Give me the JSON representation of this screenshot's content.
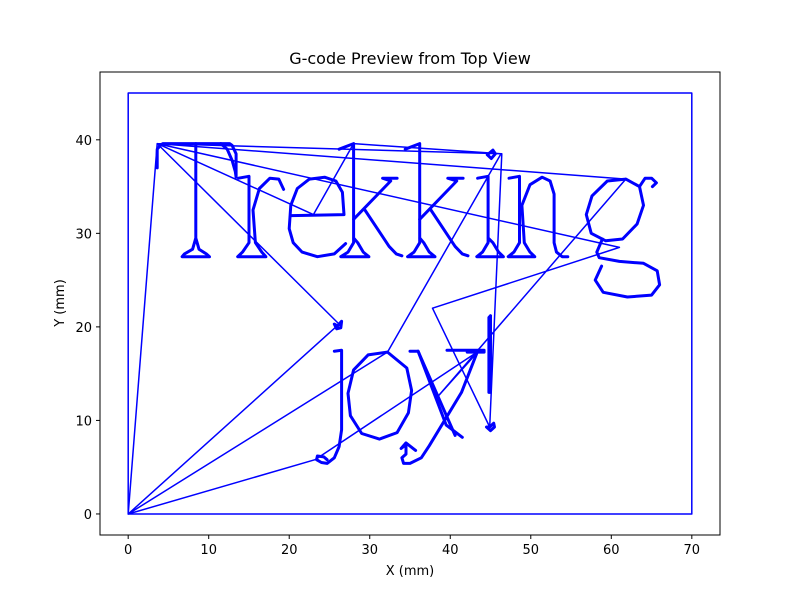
{
  "chart_data": {
    "type": "line",
    "title": "G-code Preview from Top View",
    "xlabel": "X (mm)",
    "ylabel": "Y (mm)",
    "xlim": [
      -3.5,
      73.5
    ],
    "ylim": [
      -2.25,
      47.25
    ],
    "xticks": [
      0,
      10,
      20,
      30,
      40,
      50,
      60,
      70
    ],
    "yticks": [
      0,
      10,
      20,
      30,
      40
    ],
    "grid": false,
    "line_color": "#0000ff",
    "series": [
      {
        "kind": "boundary",
        "x": [
          0,
          70,
          70,
          0,
          0
        ],
        "y": [
          0,
          0,
          45,
          45,
          0
        ]
      },
      {
        "kind": "travel",
        "x": [
          0,
          3.6,
          26.2,
          0,
          23.2,
          43.5,
          38.4,
          61.8,
          3.6,
          46.4,
          44.9,
          37.8,
          61.0,
          3.6,
          23.0,
          28.0,
          46.3,
          32.2,
          0
        ],
        "y": [
          0,
          39.6,
          20.3,
          0,
          5.8,
          17.4,
          12.5,
          35.8,
          39.6,
          38.5,
          9.3,
          22.0,
          28.5,
          39.6,
          32.0,
          39.6,
          38.5,
          17.3,
          0
        ]
      },
      {
        "kind": "glyph",
        "x": [
          3.6,
          3.6,
          4.0,
          4.3,
          12.6,
          12.9,
          13.4,
          13.4
        ],
        "y": [
          37.0,
          39.0,
          39.4,
          39.6,
          39.6,
          39.4,
          38.5,
          36.0
        ]
      },
      {
        "kind": "glyph",
        "x": [
          8.4,
          8.4,
          8.0,
          7.0,
          6.7,
          10.1,
          9.7,
          8.8,
          8.4
        ],
        "y": [
          39.6,
          29.5,
          28.3,
          27.8,
          27.5,
          27.5,
          27.8,
          28.3,
          29.5
        ]
      },
      {
        "kind": "glyph",
        "x": [
          11.5,
          12.3,
          12.9,
          13.3,
          13.4
        ],
        "y": [
          39.6,
          39.0,
          37.8,
          36.6,
          36.0
        ]
      },
      {
        "kind": "glyph",
        "x": [
          13.7,
          15.0,
          15.0,
          14.2,
          13.6,
          17.1,
          16.6,
          15.8,
          15.5,
          16.3,
          17.6,
          18.7,
          19.3
        ],
        "y": [
          35.9,
          36.1,
          29.0,
          28.0,
          27.5,
          27.5,
          28.0,
          29.0,
          32.5,
          34.8,
          35.9,
          35.8,
          34.7
        ]
      },
      {
        "kind": "glyph",
        "x": [
          20.3,
          26.8,
          26.6,
          25.8,
          24.4,
          22.5,
          21.0,
          20.2,
          20.0,
          20.5,
          21.6,
          23.5,
          25.6,
          27.0
        ],
        "y": [
          31.9,
          32.0,
          34.4,
          35.6,
          36.0,
          35.8,
          34.8,
          33.0,
          30.5,
          29.0,
          28.0,
          27.5,
          27.8,
          28.9
        ]
      },
      {
        "kind": "glyph",
        "x": [
          26.2,
          28.0,
          28.0,
          27.3,
          26.4,
          29.9,
          29.2,
          28.5,
          28.0
        ],
        "y": [
          39.0,
          39.6,
          29.0,
          28.0,
          27.5,
          27.5,
          28.0,
          29.0,
          29.5
        ]
      },
      {
        "kind": "glyph",
        "x": [
          28.0,
          32.6,
          31.6,
          33.4
        ],
        "y": [
          31.5,
          35.6,
          35.9,
          35.9
        ]
      },
      {
        "kind": "glyph",
        "x": [
          29.4,
          32.4,
          33.3,
          34.0
        ],
        "y": [
          32.5,
          28.6,
          27.8,
          27.6
        ]
      },
      {
        "kind": "glyph",
        "x": [
          34.4,
          36.2,
          36.2,
          35.5,
          34.7,
          38.1,
          37.4,
          36.7,
          36.2
        ],
        "y": [
          39.0,
          39.6,
          29.0,
          28.0,
          27.5,
          27.5,
          28.0,
          29.0,
          29.5
        ]
      },
      {
        "kind": "glyph",
        "x": [
          36.2,
          40.8,
          39.7,
          41.6
        ],
        "y": [
          31.5,
          35.6,
          35.9,
          35.9
        ]
      },
      {
        "kind": "glyph",
        "x": [
          37.6,
          40.6,
          41.5,
          42.2
        ],
        "y": [
          32.5,
          28.6,
          27.8,
          27.6
        ]
      },
      {
        "kind": "glyph",
        "x": [
          43.4,
          44.7,
          44.7,
          44.0,
          43.3,
          46.6,
          46.0,
          45.3,
          44.7
        ],
        "y": [
          35.9,
          36.1,
          29.0,
          28.0,
          27.5,
          27.5,
          28.0,
          29.0,
          29.5
        ]
      },
      {
        "kind": "glyph",
        "x": [
          44.6,
          45.3,
          45.6,
          45.1,
          44.6
        ],
        "y": [
          38.4,
          38.9,
          38.5,
          38.0,
          38.4
        ]
      },
      {
        "kind": "glyph",
        "x": [
          47.3,
          48.6,
          48.6,
          47.9,
          47.2,
          50.5,
          49.9,
          49.2,
          48.9,
          49.9,
          51.4,
          52.4,
          52.9,
          52.9,
          53.2,
          53.9,
          54.6
        ],
        "y": [
          35.9,
          36.1,
          29.0,
          28.0,
          27.5,
          27.5,
          28.0,
          29.0,
          33.0,
          35.2,
          36.0,
          35.6,
          34.2,
          29.0,
          28.0,
          27.5,
          27.5
        ]
      },
      {
        "kind": "glyph",
        "x": [
          61.8,
          59.5,
          57.6,
          56.9,
          57.5,
          59.3,
          61.4,
          63.2,
          64.0,
          63.5,
          61.8
        ],
        "y": [
          35.8,
          35.6,
          34.0,
          32.0,
          30.0,
          29.2,
          29.4,
          31.0,
          33.0,
          35.0,
          35.8
        ]
      },
      {
        "kind": "glyph",
        "x": [
          63.5,
          64.2,
          65.0,
          65.6,
          65.1
        ],
        "y": [
          35.0,
          35.9,
          35.9,
          35.4,
          35.0
        ]
      },
      {
        "kind": "glyph",
        "x": [
          58.9,
          58.2,
          58.5,
          61.0,
          64.0,
          65.7,
          66.0,
          65.0,
          62.0,
          59.0,
          58.0,
          58.8
        ],
        "y": [
          29.4,
          28.0,
          27.4,
          27.0,
          26.8,
          26.0,
          24.5,
          23.4,
          23.2,
          23.7,
          25.0,
          26.5
        ]
      },
      {
        "kind": "glyph",
        "x": [
          25.6,
          26.5,
          26.5,
          26.2,
          25.6,
          24.7,
          24.0,
          23.4,
          23.5,
          24.3,
          24.7
        ],
        "y": [
          17.4,
          17.5,
          9.0,
          7.2,
          6.0,
          5.4,
          5.5,
          5.8,
          6.2,
          6.1,
          5.8
        ]
      },
      {
        "kind": "glyph",
        "x": [
          26.0,
          26.5,
          26.4,
          25.9,
          25.6,
          26.0
        ],
        "y": [
          20.1,
          20.6,
          19.9,
          19.8,
          20.3,
          20.1
        ]
      },
      {
        "kind": "glyph",
        "x": [
          32.2,
          29.8,
          28.0,
          27.3,
          27.6,
          29.0,
          31.2,
          33.4,
          34.8,
          35.2,
          34.6,
          32.2
        ],
        "y": [
          17.3,
          17.0,
          15.4,
          12.9,
          10.5,
          8.6,
          8.0,
          8.7,
          10.8,
          13.2,
          15.6,
          17.3
        ]
      },
      {
        "kind": "glyph",
        "x": [
          35.0,
          36.0,
          40.6
        ],
        "y": [
          17.4,
          17.4,
          8.4
        ]
      },
      {
        "kind": "glyph",
        "x": [
          36.0,
          39.5,
          41.5
        ],
        "y": [
          17.4,
          9.5,
          8.2
        ]
      },
      {
        "kind": "glyph",
        "x": [
          43.4,
          41.4,
          37.4,
          36.4,
          35.0,
          34.2,
          34.0,
          34.5,
          34.5,
          33.9,
          34.5,
          35.7
        ],
        "y": [
          17.4,
          13.0,
          7.3,
          6.0,
          5.4,
          5.4,
          6.0,
          6.4,
          7.4,
          7.0,
          7.6,
          6.8
        ]
      },
      {
        "kind": "glyph",
        "x": [
          39.6,
          44.2,
          44.2,
          43.5,
          42.1
        ],
        "y": [
          17.5,
          17.5,
          17.3,
          17.3,
          17.3
        ]
      },
      {
        "kind": "glyph",
        "x": [
          45.0,
          45.0,
          44.8,
          44.8,
          45.0
        ],
        "y": [
          21.2,
          13.0,
          13.0,
          21.0,
          21.2
        ]
      },
      {
        "kind": "glyph",
        "x": [
          44.9,
          45.4,
          45.5,
          45.0,
          44.5,
          44.9
        ],
        "y": [
          9.3,
          9.7,
          9.3,
          8.9,
          9.3,
          9.3
        ]
      }
    ]
  }
}
